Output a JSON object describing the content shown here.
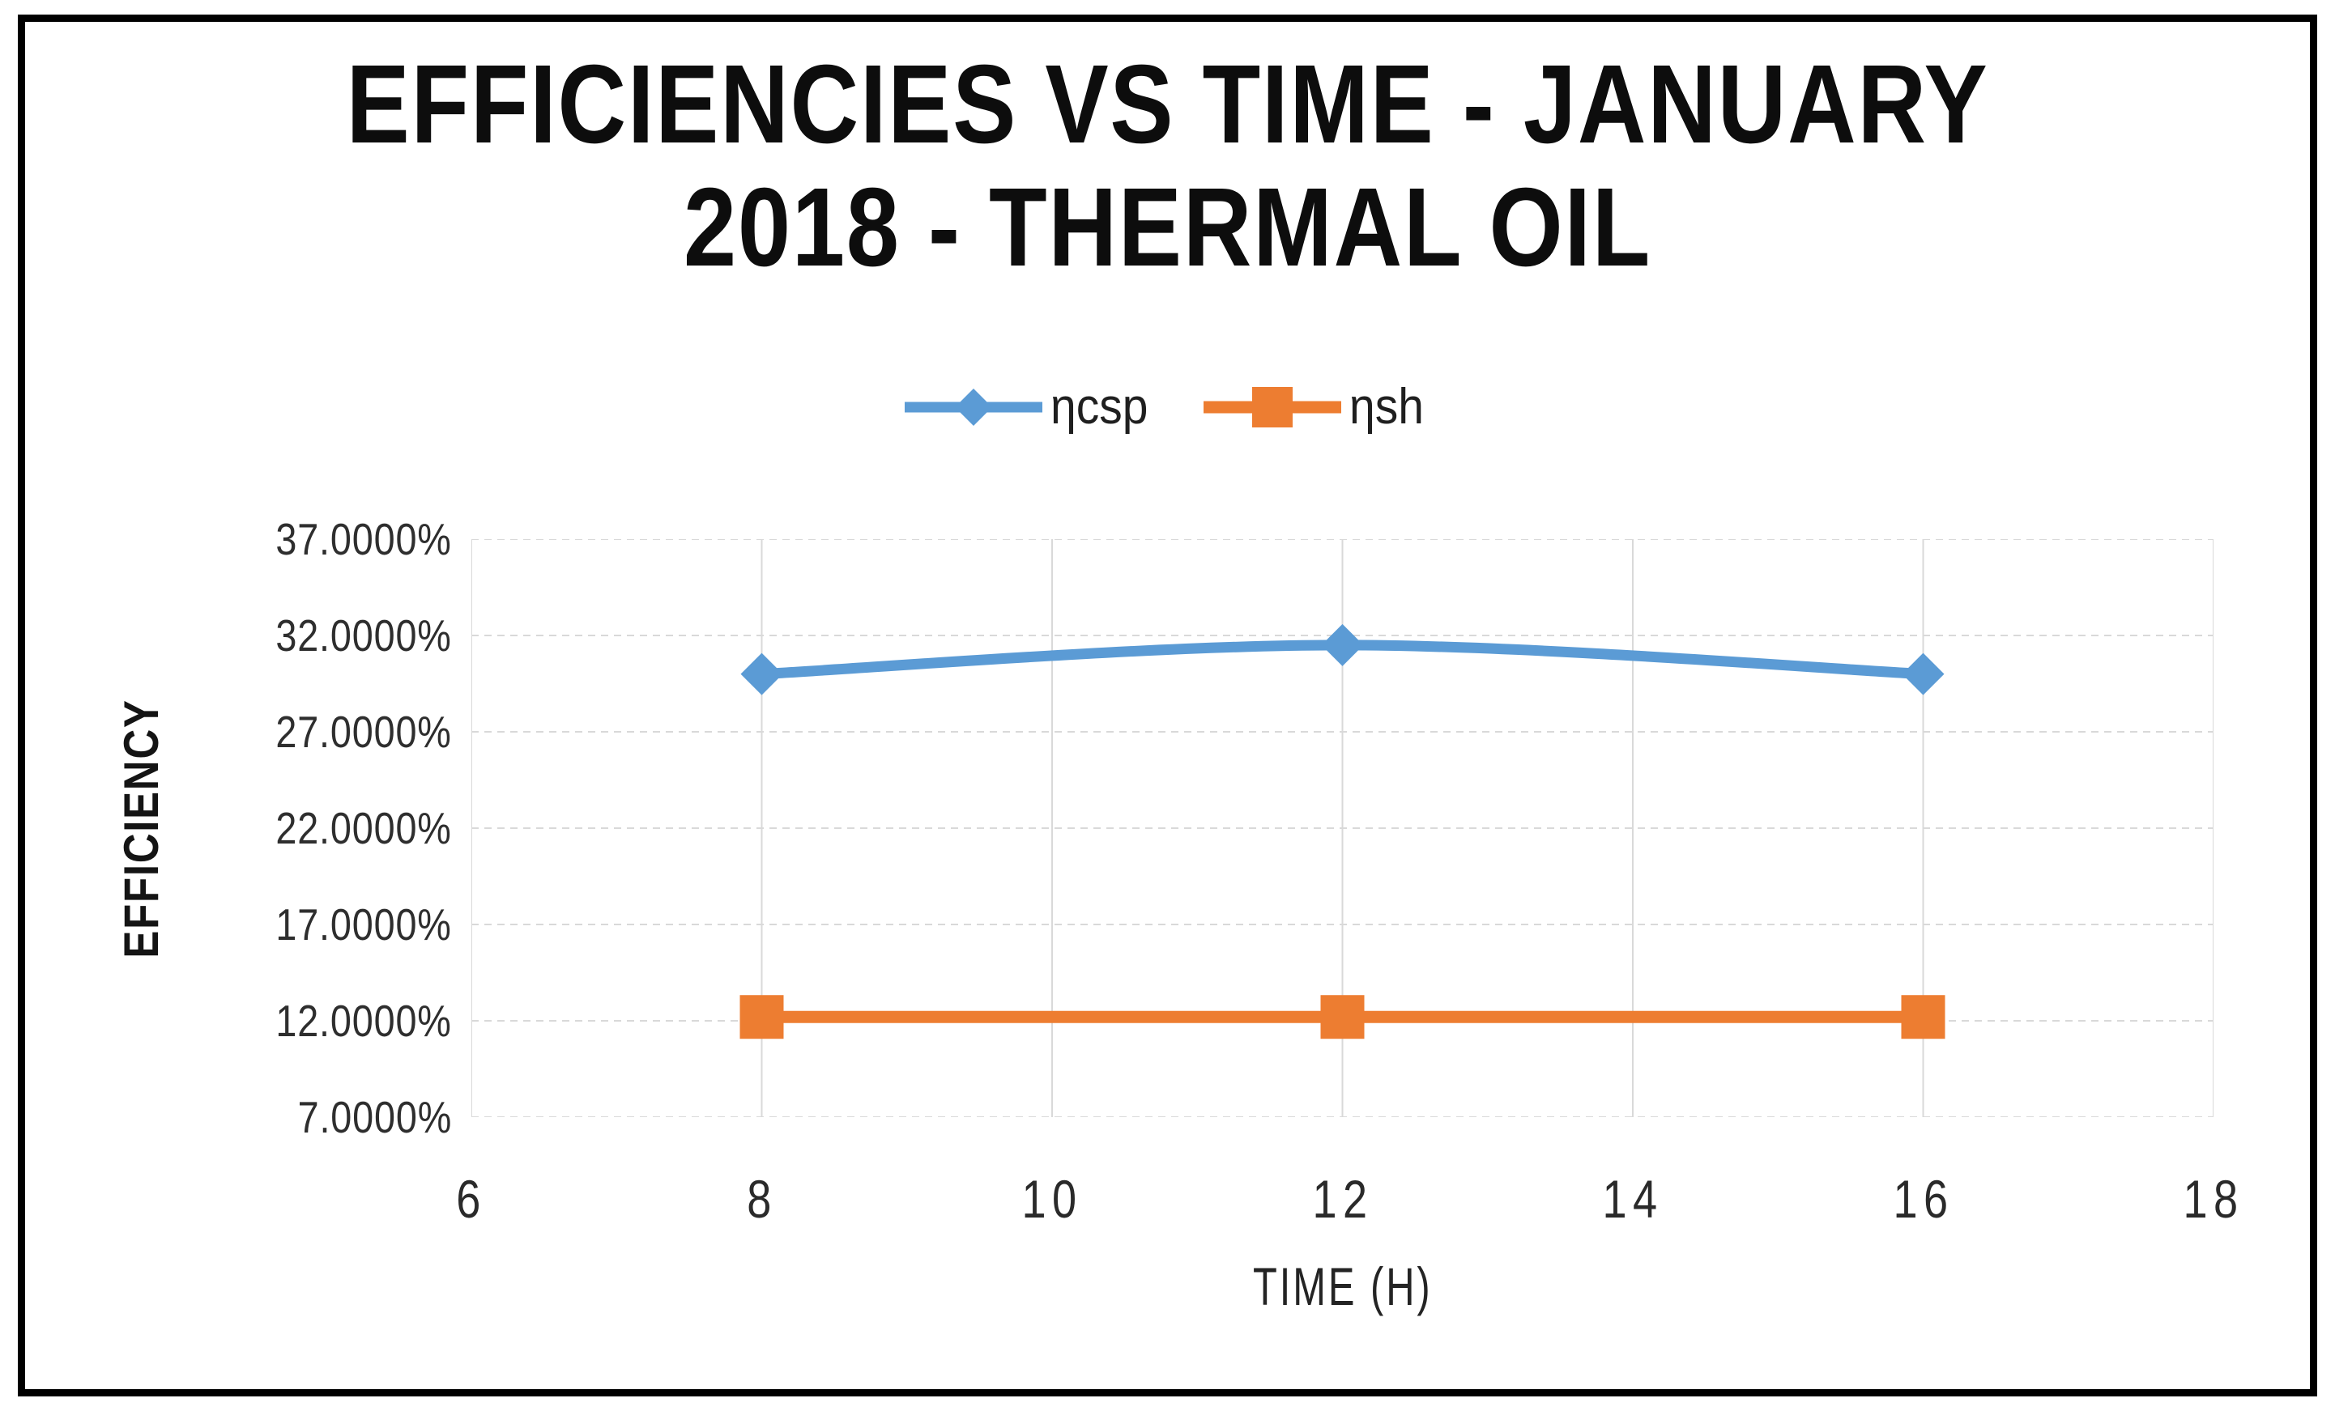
{
  "title": {
    "lines": [
      "EFFICIENCIES VS TIME - JANUARY",
      "2018 - THERMAL OIL"
    ],
    "text": "EFFICIENCIES VS TIME - JANUARY 2018 - THERMAL OIL"
  },
  "legend": {
    "items": [
      {
        "label": "ηcsp",
        "color": "#5B9BD5",
        "marker": "diamond"
      },
      {
        "label": "ηsh",
        "color": "#ED7D31",
        "marker": "square"
      }
    ]
  },
  "chart_data": {
    "type": "line",
    "title": "EFFICIENCIES VS TIME - JANUARY 2018 - THERMAL OIL",
    "x": [
      8,
      12,
      16
    ],
    "series": [
      {
        "name": "ηcsp",
        "values": [
          30.0,
          31.5,
          30.0
        ],
        "unit": "%",
        "color": "#5B9BD5",
        "marker": "diamond",
        "smooth": true,
        "line_width": 13
      },
      {
        "name": "ηsh",
        "values": [
          12.2,
          12.2,
          12.2
        ],
        "unit": "%",
        "color": "#ED7D31",
        "marker": "square",
        "smooth": false,
        "line_width": 15
      }
    ],
    "xlabel": "TIME (H)",
    "ylabel": "EFFICIENCY",
    "xlim": [
      6,
      18
    ],
    "ylim": [
      7,
      37
    ],
    "xticks": [
      6,
      8,
      10,
      12,
      14,
      16,
      18
    ],
    "xtick_labels": [
      "6",
      "8",
      "10",
      "12",
      "14",
      "16",
      "18"
    ],
    "yticks": [
      37,
      32,
      27,
      22,
      17,
      12,
      7
    ],
    "ytick_labels": [
      "37.0000%",
      "32.0000%",
      "27.0000%",
      "22.0000%",
      "17.0000%",
      "12.0000%",
      "7.0000%"
    ],
    "grid": {
      "color": "#D9D9D9",
      "horizontal_style": "dashed",
      "vertical_style": "solid"
    },
    "legend_position": "top-center",
    "marker_sizes": {
      "diamond": 52,
      "square": 54
    }
  },
  "colors": {
    "frame_border": "#000000",
    "background": "#FFFFFF",
    "title_text": "#0D0D0D",
    "axis_text": "#2E2E2E"
  }
}
